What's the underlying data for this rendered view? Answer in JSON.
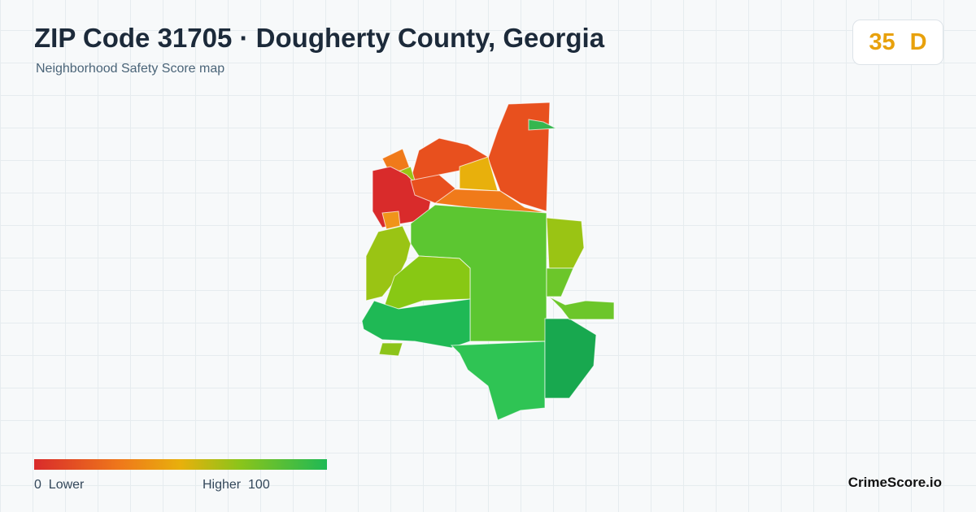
{
  "header": {
    "title": "ZIP Code 31705 · Dougherty County, Georgia",
    "subtitle": "Neighborhood Safety Score map"
  },
  "score": {
    "value": "35",
    "grade": "D"
  },
  "legend": {
    "min": 0,
    "min_label": "Lower",
    "max_label": "Higher",
    "max": 100
  },
  "brand": "CrimeScore.io"
}
